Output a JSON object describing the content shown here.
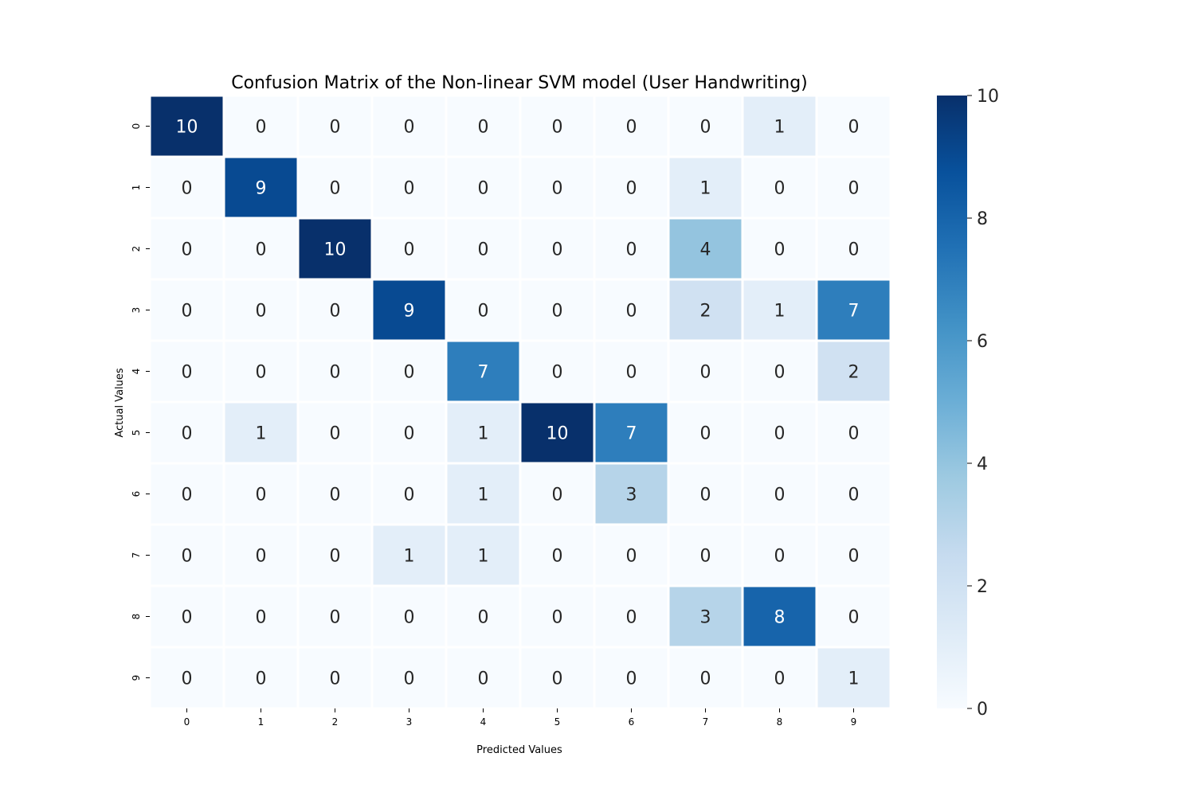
{
  "chart_data": {
    "type": "heatmap",
    "title": "Confusion Matrix of the Non-linear SVM model (User Handwriting)",
    "xlabel": "Predicted Values",
    "ylabel": "Actual Values",
    "x_categories": [
      "0",
      "1",
      "2",
      "3",
      "4",
      "5",
      "6",
      "7",
      "8",
      "9"
    ],
    "y_categories": [
      "0",
      "1",
      "2",
      "3",
      "4",
      "5",
      "6",
      "7",
      "8",
      "9"
    ],
    "matrix": [
      [
        10,
        0,
        0,
        0,
        0,
        0,
        0,
        0,
        1,
        0
      ],
      [
        0,
        9,
        0,
        0,
        0,
        0,
        0,
        1,
        0,
        0
      ],
      [
        0,
        0,
        10,
        0,
        0,
        0,
        0,
        4,
        0,
        0
      ],
      [
        0,
        0,
        0,
        9,
        0,
        0,
        0,
        2,
        1,
        7
      ],
      [
        0,
        0,
        0,
        0,
        7,
        0,
        0,
        0,
        0,
        2
      ],
      [
        0,
        1,
        0,
        0,
        1,
        10,
        7,
        0,
        0,
        0
      ],
      [
        0,
        0,
        0,
        0,
        1,
        0,
        3,
        0,
        0,
        0
      ],
      [
        0,
        0,
        0,
        1,
        1,
        0,
        0,
        0,
        0,
        0
      ],
      [
        0,
        0,
        0,
        0,
        0,
        0,
        0,
        3,
        8,
        0
      ],
      [
        0,
        0,
        0,
        0,
        0,
        0,
        0,
        0,
        0,
        1
      ]
    ],
    "colormap": "Blues",
    "vmin": 0,
    "vmax": 10,
    "colorbar_ticks": [
      0,
      2,
      4,
      6,
      8,
      10
    ],
    "annotations": true,
    "grid": false
  }
}
